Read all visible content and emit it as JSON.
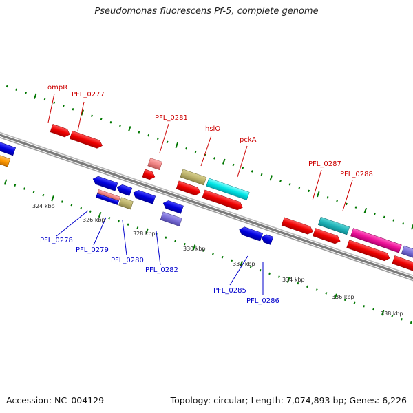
{
  "title": "Pseudomonas fluorescens Pf-5, complete genome",
  "footer": {
    "accession": "Accession: NC_004129",
    "stats": "Topology: circular; Length: 7,074,893 bp; Genes: 6,226"
  },
  "colors": {
    "forward_gene": "#ee0000",
    "reverse_gene": "#0000dd",
    "backbone": "#888888",
    "tick": "#007700",
    "top_label": "#cc0000",
    "bottom_label": "#0000cc"
  },
  "kbp_ticks": [
    "324 kbp",
    "326 kbp",
    "328 kbp",
    "330 kbp",
    "332 kbp",
    "334 kbp",
    "336 kbp",
    "338 kbp"
  ],
  "top_labels": [
    "ompR",
    "PFL_0277",
    "PFL_0281",
    "hslO",
    "pckA",
    "PFL_0287",
    "PFL_0288"
  ],
  "bottom_labels": [
    "PFL_0278",
    "PFL_0279",
    "PFL_0280",
    "PFL_0282",
    "PFL_0285",
    "PFL_0286"
  ]
}
